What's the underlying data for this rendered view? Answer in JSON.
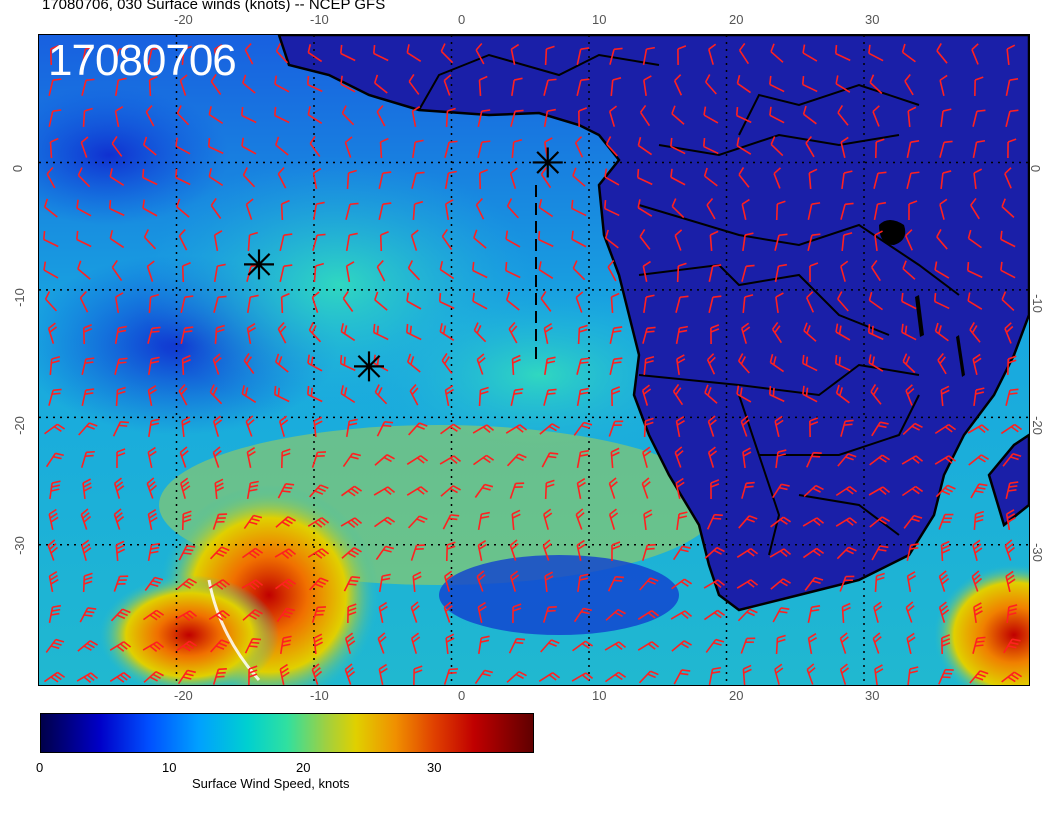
{
  "title": "17080706, 030 Surface winds (knots) -- NCEP GFS",
  "stamp": "17080706",
  "lon_ticks": [
    "-20",
    "-10",
    "0",
    "10",
    "20",
    "30"
  ],
  "lat_ticks": [
    "0",
    "-10",
    "-20",
    "-30"
  ],
  "colorbar": {
    "ticks": [
      "0",
      "10",
      "20",
      "30"
    ],
    "title": "Surface Wind Speed, knots"
  },
  "colors": {
    "ocean_low": "#1030c8",
    "ocean_mid": "#10b4d8",
    "land": "#1a1fa8",
    "barb": "#ff2020",
    "coast": "#000000"
  },
  "map": {
    "projection": "cylindrical",
    "lon_range": [
      -30,
      42
    ],
    "lat_range": [
      -41,
      10
    ],
    "markers": [
      {
        "lon": -14,
        "lat": -8
      },
      {
        "lon": -6,
        "lat": -16
      },
      {
        "lon": 7,
        "lat": 0
      }
    ]
  }
}
